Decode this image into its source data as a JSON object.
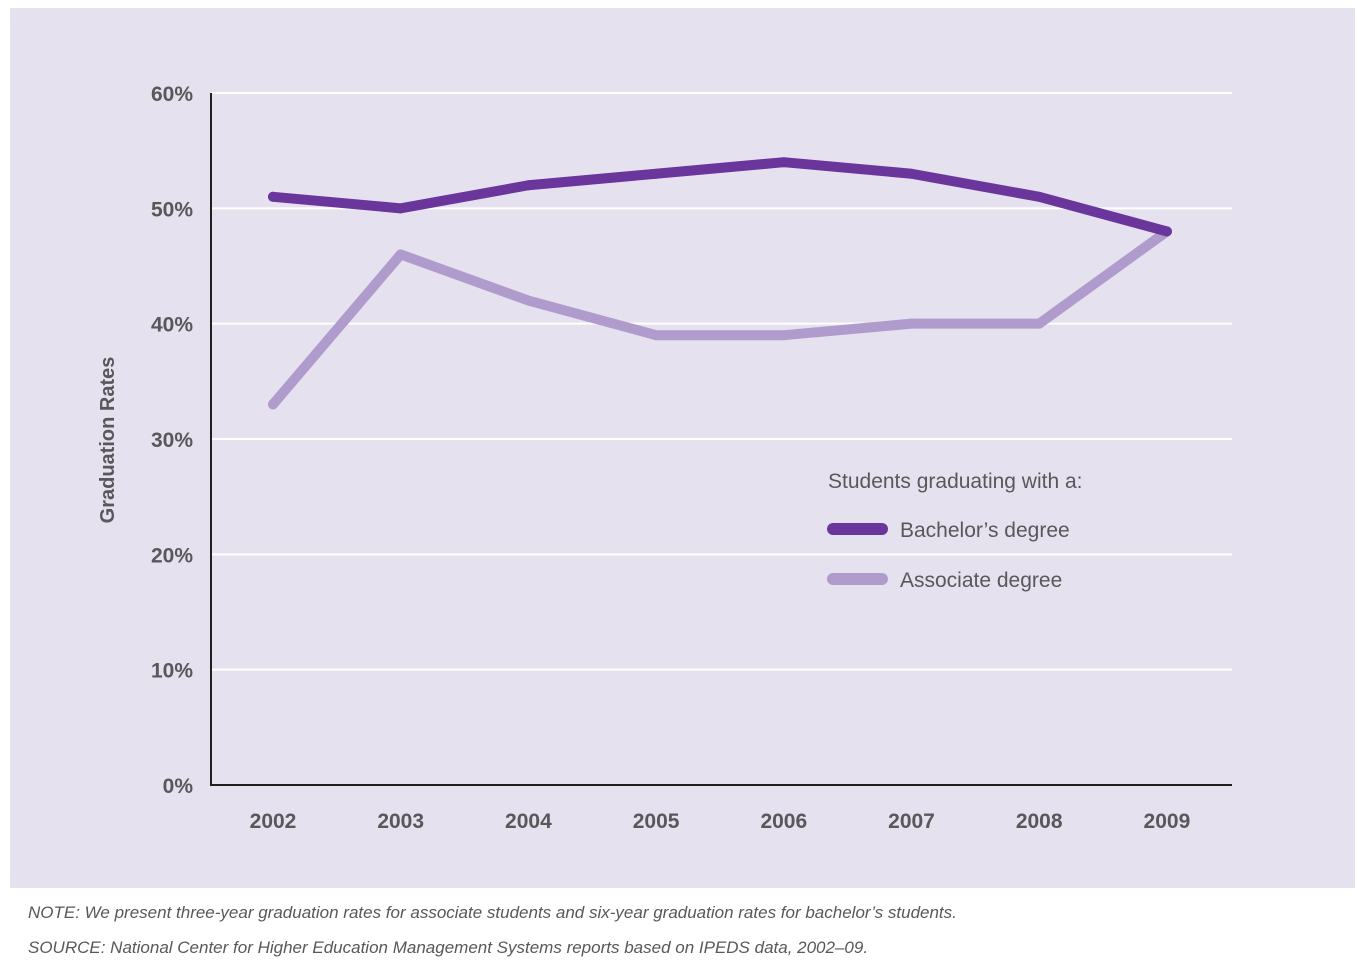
{
  "chart_data": {
    "type": "line",
    "categories": [
      "2002",
      "2003",
      "2004",
      "2005",
      "2006",
      "2007",
      "2008",
      "2009"
    ],
    "ylabel": "Graduation Rates",
    "ylim": [
      0,
      60
    ],
    "yticks": [
      0,
      10,
      20,
      30,
      40,
      50,
      60
    ],
    "ytick_labels": [
      "0%",
      "10%",
      "20%",
      "30%",
      "40%",
      "50%",
      "60%"
    ],
    "grid": true,
    "legend": {
      "title": "Students graduating with a:",
      "placement": "center-right"
    },
    "series": [
      {
        "name": "Bachelor’s degree",
        "color": "#6a369c",
        "values": [
          51,
          50,
          52,
          53,
          54,
          53,
          51,
          48
        ]
      },
      {
        "name": "Associate degree",
        "color": "#b09ccc",
        "values": [
          33,
          46,
          42,
          39,
          39,
          40,
          40,
          48
        ]
      }
    ]
  },
  "notes": {
    "note": "NOTE: We present three-year graduation rates for associate students and six-year graduation rates for bachelor’s students.",
    "source": "SOURCE: National Center for Higher Education Management Systems reports based on IPEDS data, 2002–09."
  }
}
